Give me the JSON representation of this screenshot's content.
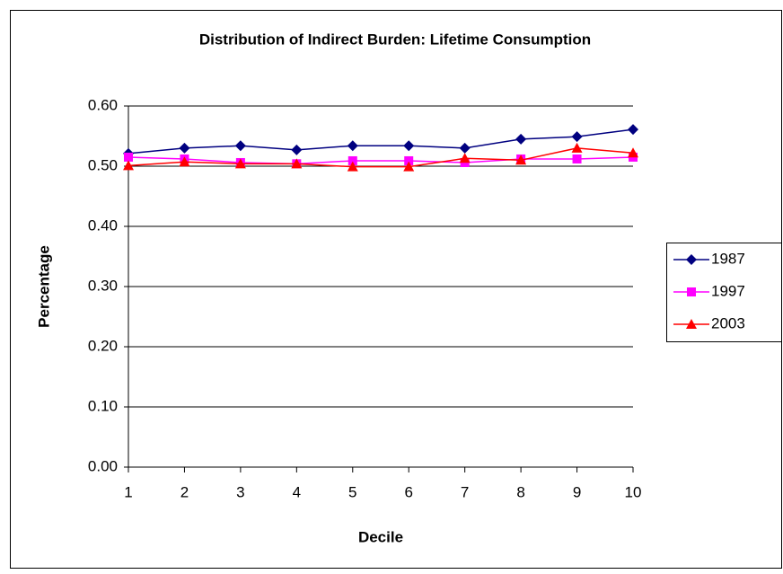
{
  "chart_data": {
    "type": "line",
    "title": "Distribution of Indirect Burden: Lifetime Consumption",
    "x_label": "Decile",
    "y_label": "Percentage",
    "x": [
      1,
      2,
      3,
      4,
      5,
      6,
      7,
      8,
      9,
      10
    ],
    "xlim": [
      1,
      10
    ],
    "xticks": [
      1,
      2,
      3,
      4,
      5,
      6,
      7,
      8,
      9,
      10
    ],
    "ylim": [
      0,
      0.6
    ],
    "yticks": [
      {
        "value": 0,
        "label": "0.00"
      },
      {
        "value": 0.1,
        "label": "0.10"
      },
      {
        "value": 0.2,
        "label": "0.20"
      },
      {
        "value": 0.3,
        "label": "0.30"
      },
      {
        "value": 0.4,
        "label": "0.40"
      },
      {
        "value": 0.5,
        "label": "0.50"
      },
      {
        "value": 0.6,
        "label": "0.60"
      }
    ],
    "grid": true,
    "legend": "right",
    "series": [
      {
        "name": "1987",
        "color": "#000080",
        "marker": "diamond",
        "values": [
          0.521,
          0.53,
          0.534,
          0.527,
          0.534,
          0.534,
          0.53,
          0.545,
          0.549,
          0.561
        ]
      },
      {
        "name": "1997",
        "color": "#FF00FF",
        "marker": "square",
        "values": [
          0.515,
          0.512,
          0.506,
          0.504,
          0.509,
          0.509,
          0.506,
          0.512,
          0.512,
          0.515
        ]
      },
      {
        "name": "2003",
        "color": "#FF0000",
        "marker": "triangle",
        "values": [
          0.501,
          0.507,
          0.504,
          0.504,
          0.499,
          0.499,
          0.513,
          0.51,
          0.53,
          0.522
        ]
      }
    ]
  }
}
